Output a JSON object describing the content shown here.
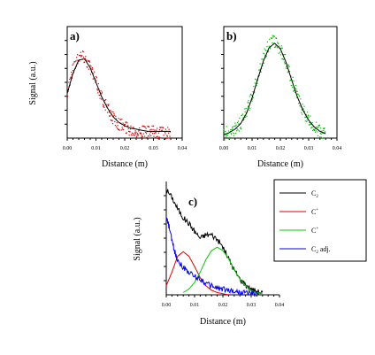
{
  "panels": {
    "a": {
      "label": "a)",
      "xlabel": "Distance (m)",
      "ylabel": "Signal (a.u.)"
    },
    "b": {
      "label": "b)",
      "xlabel": "Distance (m)"
    },
    "c": {
      "label": "c)",
      "xlabel": "Distance (m)",
      "ylabel": "Signal (a.u.)"
    }
  },
  "x_ticks": [
    "0.00",
    "0.01",
    "0.02",
    "0.03",
    "0.04"
  ],
  "legend": {
    "entries": [
      {
        "base": "C",
        "sub": "2",
        "sup": "",
        "suffix": "",
        "color": "#000000"
      },
      {
        "base": "C",
        "sub": "",
        "sup": "+",
        "suffix": "",
        "color": "#dd0000"
      },
      {
        "base": "C",
        "sub": "",
        "sup": "+",
        "suffix": "",
        "color": "#00cc00"
      },
      {
        "base": "C",
        "sub": "2",
        "sup": "",
        "suffix": " adj.",
        "color": "#0000ee"
      }
    ]
  },
  "chart_data": [
    {
      "type": "scatter",
      "panel": "a",
      "xlim": [
        0.0,
        0.04
      ],
      "ylim": [
        0,
        1
      ],
      "series": [
        {
          "name": "",
          "kind": "points",
          "color": "#cc0000",
          "x": [
            0.0,
            0.002,
            0.004,
            0.006,
            0.008,
            0.01,
            0.012,
            0.014,
            0.016,
            0.018,
            0.02,
            0.022,
            0.024,
            0.026,
            0.028,
            0.03,
            0.032,
            0.034,
            0.036
          ],
          "y": [
            0.42,
            0.62,
            0.74,
            0.73,
            0.64,
            0.5,
            0.37,
            0.26,
            0.18,
            0.13,
            0.1,
            0.08,
            0.07,
            0.06,
            0.05,
            0.05,
            0.05,
            0.04,
            0.04
          ]
        },
        {
          "name": "",
          "kind": "line",
          "color": "#000000",
          "x": [
            0.0,
            0.002,
            0.004,
            0.006,
            0.008,
            0.01,
            0.012,
            0.014,
            0.016,
            0.018,
            0.02,
            0.022,
            0.024,
            0.026,
            0.028,
            0.03,
            0.032,
            0.034,
            0.036
          ],
          "y": [
            0.4,
            0.58,
            0.7,
            0.71,
            0.63,
            0.5,
            0.37,
            0.27,
            0.19,
            0.14,
            0.11,
            0.09,
            0.08,
            0.07,
            0.06,
            0.06,
            0.06,
            0.06,
            0.06
          ]
        }
      ]
    },
    {
      "type": "scatter",
      "panel": "b",
      "xlim": [
        0.0,
        0.04
      ],
      "ylim": [
        0,
        1
      ],
      "series": [
        {
          "name": "",
          "kind": "points",
          "color": "#00bb00",
          "x": [
            0.0,
            0.002,
            0.004,
            0.006,
            0.008,
            0.01,
            0.012,
            0.014,
            0.016,
            0.018,
            0.02,
            0.022,
            0.024,
            0.026,
            0.028,
            0.03,
            0.032,
            0.034,
            0.036
          ],
          "y": [
            0.04,
            0.05,
            0.08,
            0.13,
            0.23,
            0.38,
            0.56,
            0.72,
            0.84,
            0.87,
            0.8,
            0.68,
            0.52,
            0.37,
            0.25,
            0.16,
            0.1,
            0.06,
            0.04
          ]
        },
        {
          "name": "",
          "kind": "line",
          "color": "#000000",
          "x": [
            0.0,
            0.002,
            0.004,
            0.006,
            0.008,
            0.01,
            0.012,
            0.014,
            0.016,
            0.018,
            0.02,
            0.022,
            0.024,
            0.026,
            0.028,
            0.03,
            0.032,
            0.034,
            0.036
          ],
          "y": [
            0.03,
            0.05,
            0.08,
            0.13,
            0.22,
            0.36,
            0.53,
            0.69,
            0.81,
            0.85,
            0.8,
            0.68,
            0.52,
            0.37,
            0.25,
            0.16,
            0.1,
            0.06,
            0.04
          ]
        }
      ]
    },
    {
      "type": "line",
      "panel": "c",
      "xlim": [
        0.0,
        0.04
      ],
      "ylim": [
        0,
        1
      ],
      "series": [
        {
          "name": "C2",
          "color": "#000000",
          "x": [
            0.0,
            0.002,
            0.004,
            0.006,
            0.008,
            0.01,
            0.012,
            0.014,
            0.016,
            0.018,
            0.02,
            0.022,
            0.024,
            0.026,
            0.028,
            0.03,
            0.032,
            0.034
          ],
          "y": [
            0.93,
            0.86,
            0.76,
            0.68,
            0.63,
            0.56,
            0.5,
            0.53,
            0.53,
            0.49,
            0.42,
            0.32,
            0.22,
            0.14,
            0.09,
            0.05,
            0.03,
            0.02
          ]
        },
        {
          "name": "C+",
          "color": "#dd0000",
          "x": [
            0.0,
            0.002,
            0.004,
            0.006,
            0.008,
            0.01,
            0.012,
            0.014,
            0.016,
            0.018,
            0.02,
            0.022
          ],
          "y": [
            0.08,
            0.2,
            0.34,
            0.38,
            0.34,
            0.25,
            0.15,
            0.08,
            0.04,
            0.02,
            0.01,
            0.0
          ]
        },
        {
          "name": "C+",
          "color": "#00cc00",
          "x": [
            0.006,
            0.008,
            0.01,
            0.012,
            0.014,
            0.016,
            0.018,
            0.02,
            0.022,
            0.024,
            0.026,
            0.028,
            0.03,
            0.032,
            0.034
          ],
          "y": [
            0.02,
            0.05,
            0.11,
            0.2,
            0.31,
            0.39,
            0.42,
            0.39,
            0.32,
            0.22,
            0.14,
            0.08,
            0.04,
            0.02,
            0.01
          ]
        },
        {
          "name": "C2 adj.",
          "color": "#0000ee",
          "x": [
            0.0,
            0.001,
            0.002,
            0.003,
            0.004,
            0.006,
            0.008,
            0.01,
            0.012,
            0.014,
            0.016,
            0.018,
            0.02,
            0.022,
            0.024,
            0.026,
            0.028,
            0.03,
            0.032
          ],
          "y": [
            0.68,
            0.6,
            0.48,
            0.38,
            0.31,
            0.24,
            0.2,
            0.16,
            0.14,
            0.1,
            0.08,
            0.06,
            0.05,
            0.04,
            0.03,
            0.02,
            0.02,
            0.01,
            0.01
          ]
        }
      ]
    }
  ]
}
